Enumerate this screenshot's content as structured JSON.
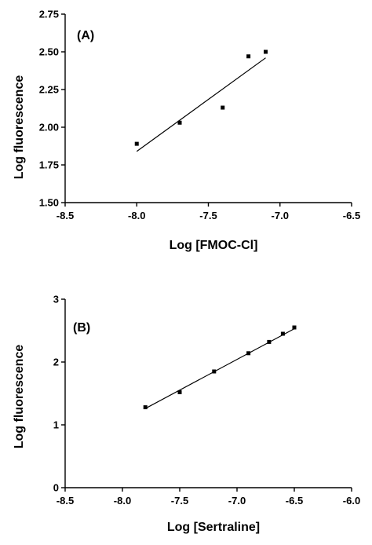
{
  "chart_data": [
    {
      "type": "scatter",
      "panel_label": "(A)",
      "xlabel": "Log [FMOC-Cl]",
      "ylabel": "Log fluorescence",
      "xlim": [
        -8.5,
        -6.5
      ],
      "ylim": [
        1.5,
        2.75
      ],
      "xticks": [
        -8.5,
        -8.0,
        -7.5,
        -7.0,
        -6.5
      ],
      "xtick_labels": [
        "-8.5",
        "-8.0",
        "-7.5",
        "-7.0",
        "-6.5"
      ],
      "yticks": [
        1.5,
        1.75,
        2.0,
        2.25,
        2.5,
        2.75
      ],
      "ytick_labels": [
        "1.50",
        "1.75",
        "2.00",
        "2.25",
        "2.50",
        "2.75"
      ],
      "series": [
        {
          "x": [
            -8.0,
            -7.7,
            -7.4,
            -7.22,
            -7.1
          ],
          "y": [
            1.89,
            2.03,
            2.13,
            2.47,
            2.5
          ]
        }
      ],
      "fit_line": {
        "x": [
          -8.0,
          -7.1
        ],
        "y": [
          1.84,
          2.46
        ]
      }
    },
    {
      "type": "scatter",
      "panel_label": "(B)",
      "xlabel": "Log [Sertraline]",
      "ylabel": "Log fluorescence",
      "xlim": [
        -8.5,
        -6.0
      ],
      "ylim": [
        0,
        3
      ],
      "xticks": [
        -8.5,
        -8.0,
        -7.5,
        -7.0,
        -6.5,
        -6.0
      ],
      "xtick_labels": [
        "-8.5",
        "-8.0",
        "-7.5",
        "-7.0",
        "-6.5",
        "-6.0"
      ],
      "yticks": [
        0,
        1,
        2,
        3
      ],
      "ytick_labels": [
        "0",
        "1",
        "2",
        "3"
      ],
      "series": [
        {
          "x": [
            -7.8,
            -7.5,
            -7.2,
            -6.9,
            -6.72,
            -6.6,
            -6.5
          ],
          "y": [
            1.28,
            1.52,
            1.85,
            2.14,
            2.32,
            2.45,
            2.55
          ]
        }
      ],
      "fit_line": {
        "x": [
          -7.8,
          -6.5
        ],
        "y": [
          1.26,
          2.53
        ]
      }
    }
  ]
}
